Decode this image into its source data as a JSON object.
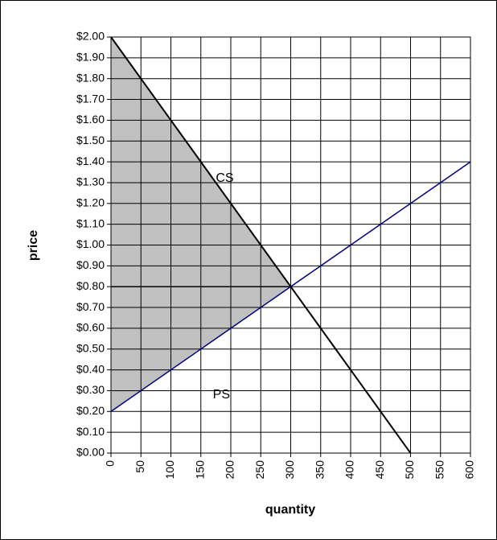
{
  "chart_data": {
    "type": "line",
    "xlabel": "quantity",
    "ylabel": "price",
    "xlim": [
      0,
      600
    ],
    "xticks": [
      0,
      50,
      100,
      150,
      200,
      250,
      300,
      350,
      400,
      450,
      500,
      550,
      600
    ],
    "ylim": [
      0,
      2
    ],
    "yticks": [
      {
        "value": 0,
        "label": "$0.00"
      },
      {
        "value": 0.1,
        "label": "$0.10"
      },
      {
        "value": 0.2,
        "label": "$0.20"
      },
      {
        "value": 0.3,
        "label": "$0.30"
      },
      {
        "value": 0.4,
        "label": "$0.40"
      },
      {
        "value": 0.5,
        "label": "$0.50"
      },
      {
        "value": 0.6,
        "label": "$0.60"
      },
      {
        "value": 0.7,
        "label": "$0.70"
      },
      {
        "value": 0.8,
        "label": "$0.80"
      },
      {
        "value": 0.9,
        "label": "$0.90"
      },
      {
        "value": 1,
        "label": "$1.00"
      },
      {
        "value": 1.1,
        "label": "$1.10"
      },
      {
        "value": 1.2,
        "label": "$1.20"
      },
      {
        "value": 1.3,
        "label": "$1.30"
      },
      {
        "value": 1.4,
        "label": "$1.40"
      },
      {
        "value": 1.5,
        "label": "$1.50"
      },
      {
        "value": 1.6,
        "label": "$1.60"
      },
      {
        "value": 1.7,
        "label": "$1.70"
      },
      {
        "value": 1.8,
        "label": "$1.80"
      },
      {
        "value": 1.9,
        "label": "$1.90"
      },
      {
        "value": 2,
        "label": "$2.00"
      }
    ],
    "grid": true,
    "shaded_region": {
      "x": [
        0,
        300,
        0
      ],
      "y": [
        2,
        0.8,
        0.2
      ],
      "color": "#c0c0c0"
    },
    "series": [
      {
        "x": [
          0,
          500
        ],
        "values": [
          2,
          0
        ],
        "color": "#000000"
      },
      {
        "x": [
          0,
          600
        ],
        "values": [
          0.2,
          1.4
        ],
        "color": "#000080"
      },
      {
        "x": [
          0,
          300
        ],
        "values": [
          0.8,
          0.8
        ],
        "color": "#000000"
      }
    ],
    "annotations": [
      {
        "text": "CS",
        "x": 175,
        "y": 1.32
      },
      {
        "text": "PS",
        "x": 170,
        "y": 0.28
      }
    ]
  }
}
